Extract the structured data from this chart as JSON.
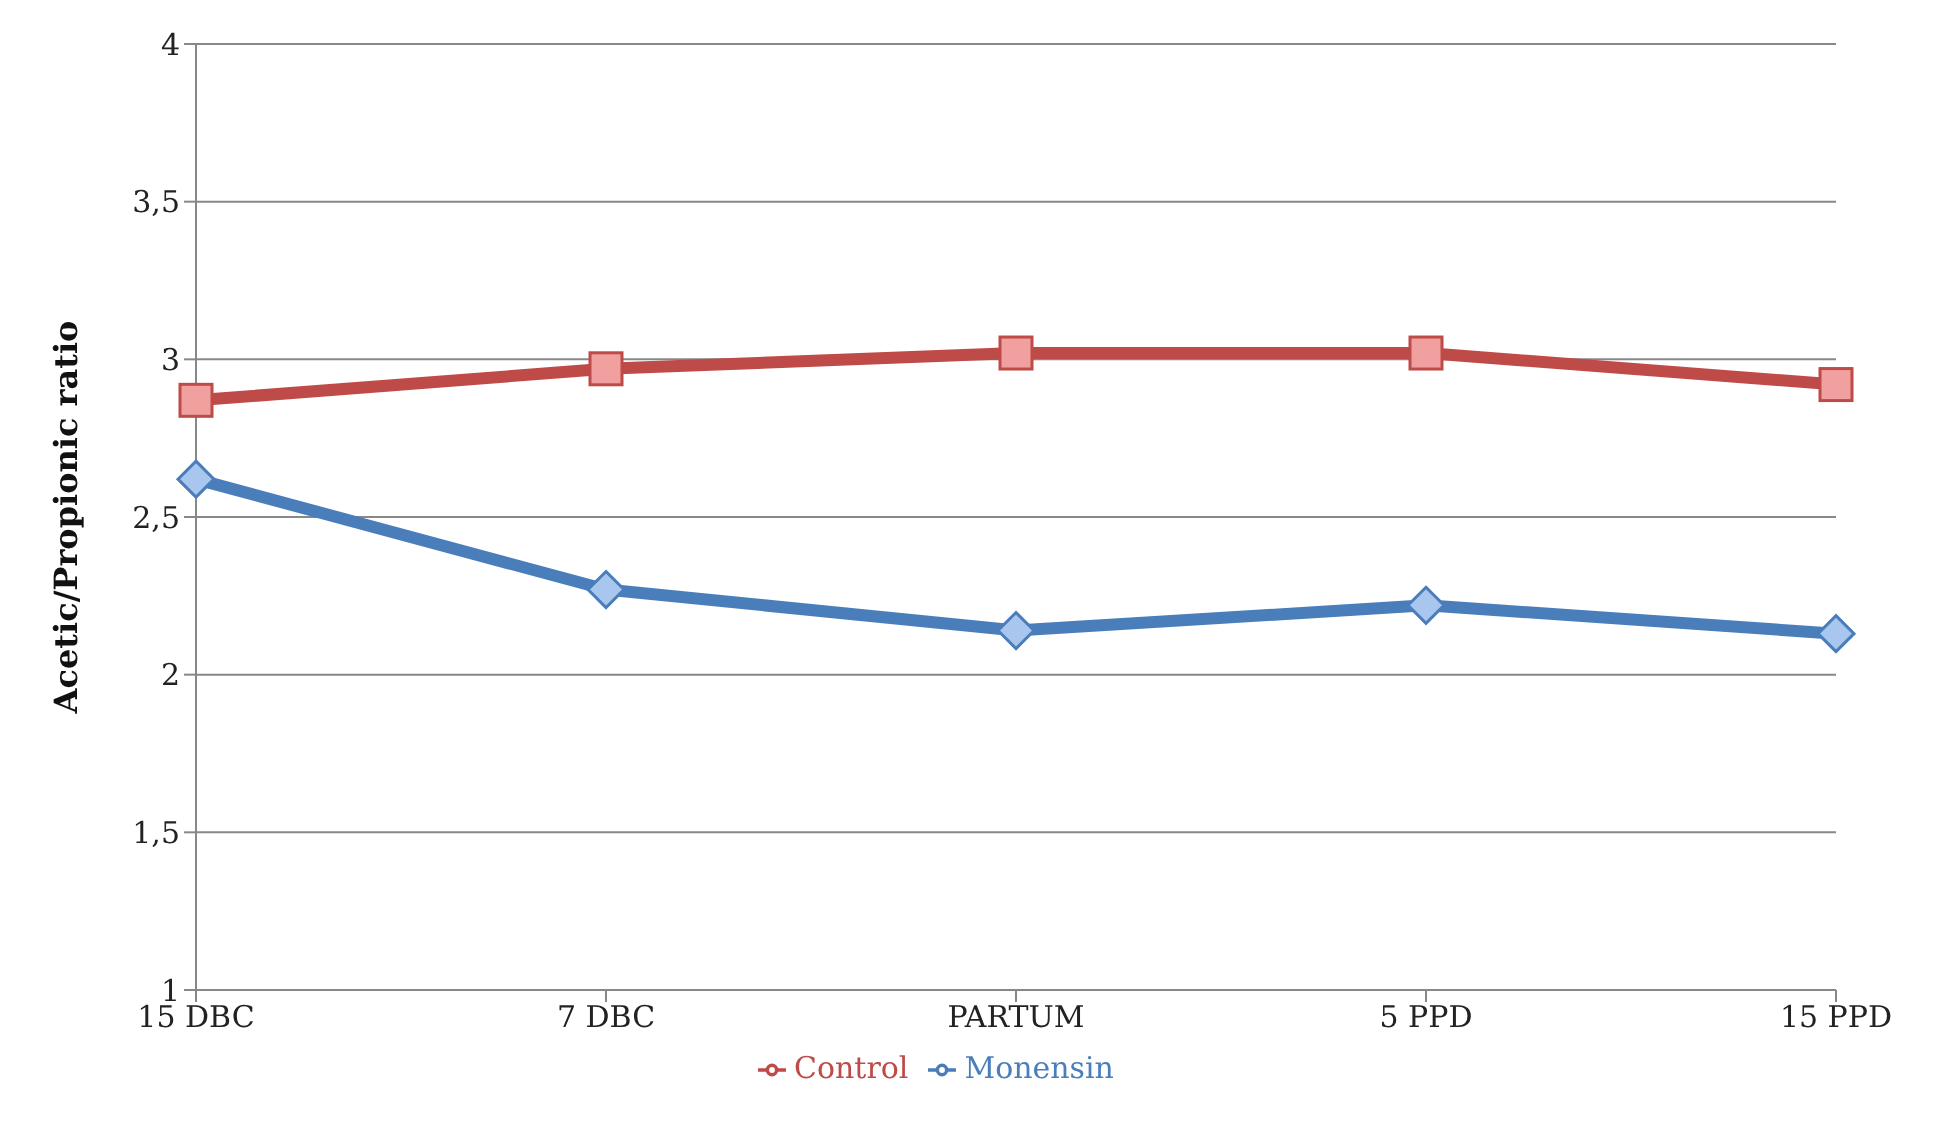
{
  "chart_data": {
    "type": "line",
    "ylabel": "Acetic/Propionic ratio",
    "categories": [
      "15 DBC",
      "7 DBC",
      "PARTUM",
      "5 PPD",
      "15 PPD"
    ],
    "series": [
      {
        "name": "Monensin",
        "color": "#4a7ebb",
        "marker": "diamond",
        "values": [
          2.62,
          2.27,
          2.14,
          2.22,
          2.13
        ]
      },
      {
        "name": "Control",
        "color": "#be4b48",
        "marker": "square",
        "values": [
          2.87,
          2.97,
          3.02,
          3.02,
          2.92
        ]
      }
    ],
    "ylim": [
      1,
      4
    ],
    "yticks": [
      1,
      {
        "value": 1.5,
        "label": "1,5"
      },
      2,
      {
        "value": 2.5,
        "label": "2,5"
      },
      3,
      {
        "value": 3.5,
        "label": "3,5"
      },
      4
    ],
    "grid": "y",
    "legend": "bottom"
  }
}
